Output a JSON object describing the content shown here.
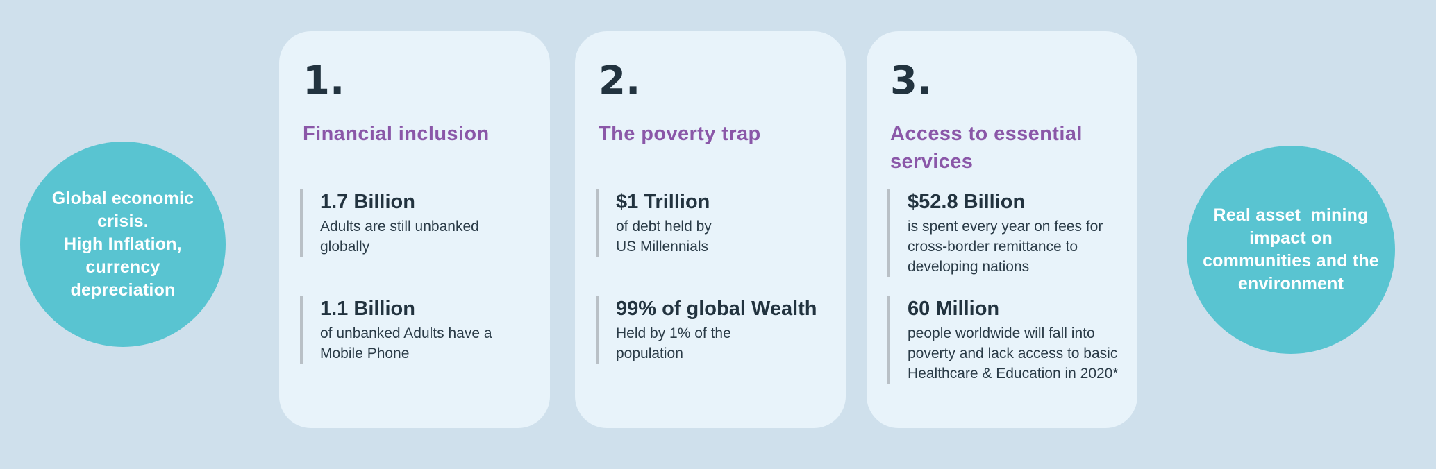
{
  "colors": {
    "page-bg": "#cfe0ec",
    "card-bg": "#e8f3fa",
    "teal": "#59c4d1",
    "purple": "#8a57a8",
    "dark": "#22333f",
    "body-text": "#2a3b47",
    "bar": "#b9c0c6"
  },
  "left_circle": {
    "text": "Global economic\ncrisis.\nHigh Inflation,\ncurrency\ndepreciation"
  },
  "right_circle": {
    "text": "Real asset  mining\nimpact on\ncommunities and the\nenvironment"
  },
  "cards": [
    {
      "number": "1.",
      "title": "Financial inclusion",
      "stats": [
        {
          "value": "1.7 Billion",
          "description": "Adults are still unbanked\nglobally"
        },
        {
          "value": "1.1 Billion",
          "description": "of unbanked Adults have a\nMobile Phone"
        }
      ]
    },
    {
      "number": "2.",
      "title": "The poverty trap",
      "stats": [
        {
          "value": "$1 Trillion",
          "description": "of debt held by\nUS Millennials"
        },
        {
          "value": "99% of global Wealth",
          "description": "Held by 1% of the\npopulation"
        }
      ]
    },
    {
      "number": "3.",
      "title": "Access to essential\nservices",
      "stats": [
        {
          "value": "$52.8 Billion",
          "description": "is spent every year on fees for\ncross-border remittance to\ndeveloping nations"
        },
        {
          "value": "60 Million",
          "description": "people worldwide will fall into\npoverty and lack access to basic\nHealthcare & Education in 2020*"
        }
      ]
    }
  ]
}
